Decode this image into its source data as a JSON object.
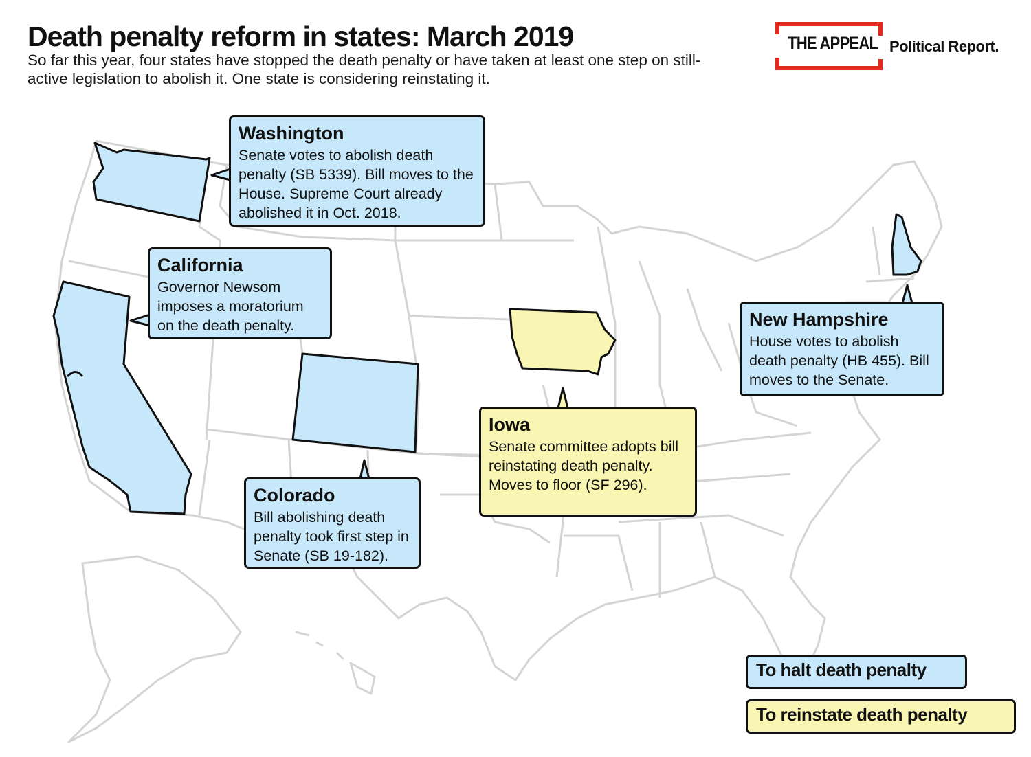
{
  "title": "Death penalty reform in states: March 2019",
  "subtitle": "So far this year, four states have stopped the death penalty or have taken at least one step on still-active legislation to abolish it. One state is considering reinstating it.",
  "logo": {
    "text": "THE APPEAL",
    "sub": "Political Report."
  },
  "colors": {
    "halt": "#c7e8fa",
    "reinstate": "#f9f6b3",
    "border": "#111111",
    "logo_red": "#e22a1e",
    "map_line": "#d4d4d4"
  },
  "callouts": {
    "washington": {
      "state": "Washington",
      "desc": "Senate votes to abolish death penalty (SB 5339). Bill moves to the House. Supreme Court already abolished it in Oct. 2018.",
      "category": "halt"
    },
    "california": {
      "state": "California",
      "desc": "Governor Newsom imposes a moratorium on the death penalty.",
      "category": "halt"
    },
    "colorado": {
      "state": "Colorado",
      "desc": "Bill abolishing death penalty took first step in Senate (SB 19-182).",
      "category": "halt"
    },
    "iowa": {
      "state": "Iowa",
      "desc": "Senate committee adopts bill reinstating death penalty. Moves to floor (SF 296).",
      "category": "reinstate"
    },
    "new_hampshire": {
      "state": "New Hampshire",
      "desc": "House votes to abolish death penalty (HB 455). Bill moves to the Senate.",
      "category": "halt"
    }
  },
  "legend": {
    "halt": "To halt death penalty",
    "reinstate": "To reinstate death penalty"
  }
}
